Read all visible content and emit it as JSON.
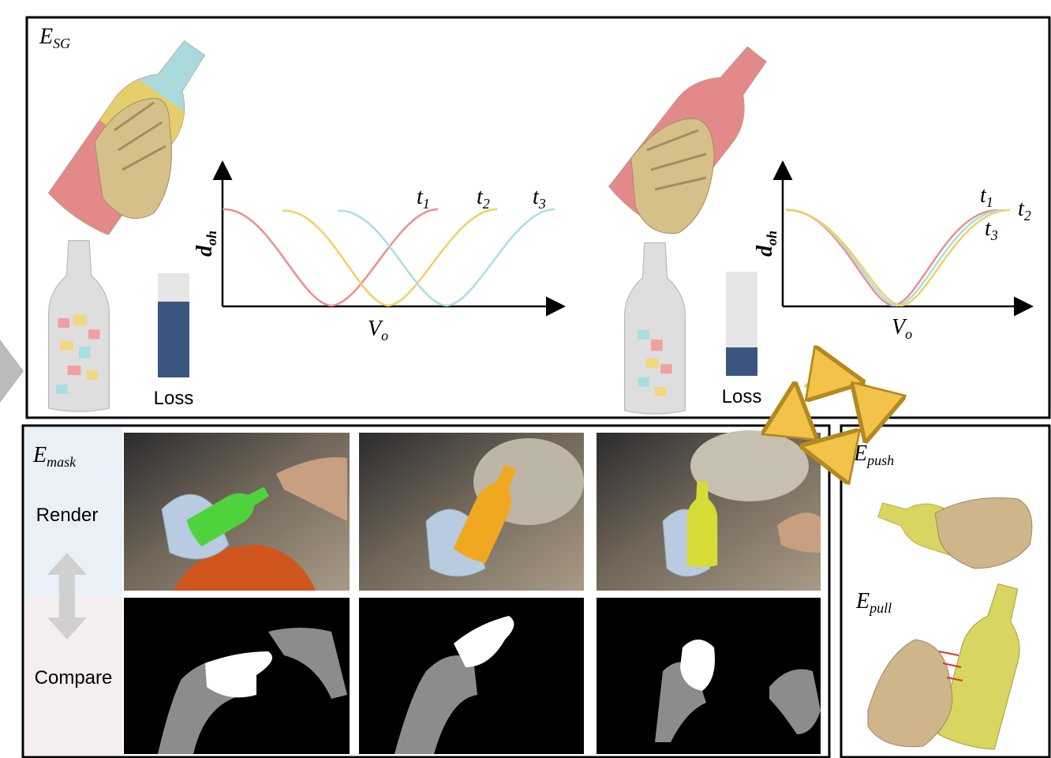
{
  "panels": {
    "shape_grasp": {
      "label": {
        "symbol": "E",
        "subscript": "SG"
      },
      "charts": [
        {
          "y_label": {
            "symbol": "d",
            "subscript": "oh"
          },
          "x_label": {
            "symbol": "V",
            "subscript": "o"
          },
          "curve_labels": [
            {
              "symbol": "t",
              "subscript": "1"
            },
            {
              "symbol": "t",
              "subscript": "2"
            },
            {
              "symbol": "t",
              "subscript": "3"
            }
          ],
          "bar_label": "Loss"
        },
        {
          "y_label": {
            "symbol": "d",
            "subscript": "oh"
          },
          "x_label": {
            "symbol": "V",
            "subscript": "o"
          },
          "curve_labels": [
            {
              "symbol": "t",
              "subscript": "1"
            },
            {
              "symbol": "t",
              "subscript": "2"
            },
            {
              "symbol": "t",
              "subscript": "3"
            }
          ],
          "bar_label": "Loss"
        }
      ]
    },
    "mask": {
      "label": {
        "symbol": "E",
        "subscript": "mask"
      },
      "row_labels": [
        "Render",
        "Compare"
      ]
    },
    "contact": {
      "push": {
        "symbol": "E",
        "subscript": "push"
      },
      "pull": {
        "symbol": "E",
        "subscript": "pull"
      }
    }
  }
}
